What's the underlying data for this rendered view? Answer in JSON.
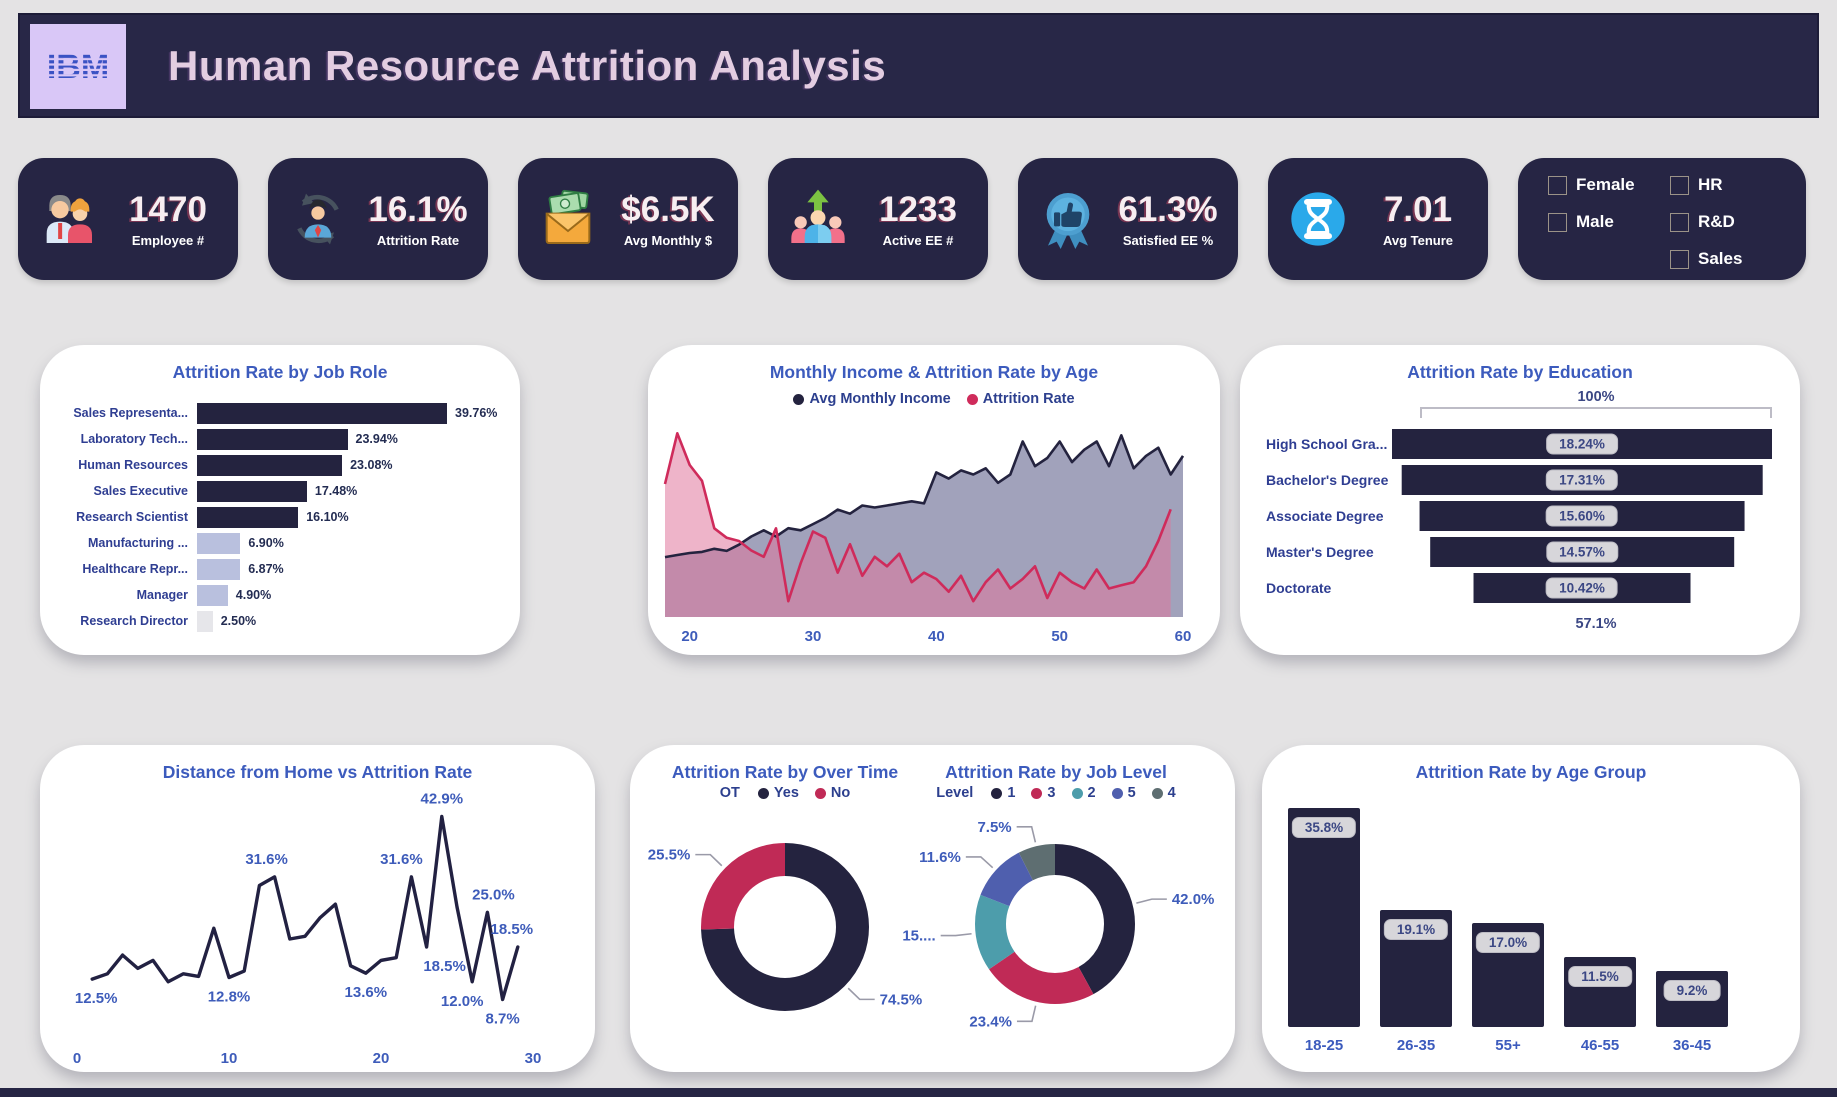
{
  "header": {
    "logo": "IBM",
    "title": "Human Resource Attrition Analysis"
  },
  "kpis": [
    {
      "icon": "employees-icon",
      "value": "1470",
      "label": "Employee #"
    },
    {
      "icon": "attrition-cycle-icon",
      "value": "16.1%",
      "label": "Attrition Rate"
    },
    {
      "icon": "money-envelope-icon",
      "value": "$6.5K",
      "label": "Avg Monthly $"
    },
    {
      "icon": "active-people-icon",
      "value": "1233",
      "label": "Active EE #"
    },
    {
      "icon": "thumbs-up-badge-icon",
      "value": "61.3%",
      "label": "Satisfied EE %"
    },
    {
      "icon": "hourglass-icon",
      "value": "7.01",
      "label": "Avg Tenure"
    }
  ],
  "filters": {
    "gender": [
      {
        "label": "Female",
        "checked": false
      },
      {
        "label": "Male",
        "checked": false
      }
    ],
    "department": [
      {
        "label": "HR",
        "checked": false
      },
      {
        "label": "R&D",
        "checked": false
      },
      {
        "label": "Sales",
        "checked": false
      }
    ]
  },
  "colors": {
    "navy": "#24233f",
    "crimson": "#c02a56",
    "crimsonLine": "#cf2b5b",
    "teal": "#4d9dab",
    "indigo": "#4f5fae",
    "grayGreen": "#5e6e71",
    "lavenderBar": "#b9c0de",
    "lightestBar": "#e6e6ea",
    "incomeFill": "#9798b4",
    "attritionFill": "#e0769c",
    "titleBlue": "#3c5bbd",
    "labelBlue": "#3e5cba",
    "leader": "#9a9aa8"
  },
  "chart_data": [
    {
      "id": "job_role",
      "type": "bar",
      "orientation": "horizontal",
      "title": "Attrition Rate by Job Role",
      "categories": [
        "Sales Representa...",
        "Laboratory Tech...",
        "Human Resources",
        "Sales Executive",
        "Research Scientist",
        "Manufacturing ...",
        "Healthcare Repr...",
        "Manager",
        "Research Director"
      ],
      "values": [
        39.76,
        23.94,
        23.08,
        17.48,
        16.1,
        6.9,
        6.87,
        4.9,
        2.5
      ],
      "labels": [
        "39.76%",
        "23.94%",
        "23.08%",
        "17.48%",
        "16.10%",
        "6.90%",
        "6.87%",
        "4.90%",
        "2.50%"
      ],
      "bar_colors": [
        "#24233f",
        "#24233f",
        "#24233f",
        "#24233f",
        "#24233f",
        "#b9c0de",
        "#b9c0de",
        "#b9c0de",
        "#e6e6ea"
      ]
    },
    {
      "id": "income_age",
      "type": "area",
      "title": "Monthly Income & Attrition Rate by Age",
      "x_range": [
        18,
        60
      ],
      "x_ticks": [
        20,
        30,
        40,
        50,
        60
      ],
      "series": [
        {
          "name": "Avg Monthly Income",
          "color": "#24233f",
          "fill": "#9798b4",
          "x_start": 18,
          "max": 9.2,
          "values": [
            2.9,
            3.0,
            3.1,
            3.15,
            3.3,
            3.2,
            3.5,
            3.9,
            4.2,
            3.9,
            4.3,
            4.2,
            4.5,
            4.8,
            5.2,
            5.0,
            5.4,
            5.3,
            5.4,
            5.5,
            5.6,
            5.5,
            7.0,
            6.7,
            7.1,
            6.9,
            7.2,
            6.5,
            6.9,
            8.5,
            7.3,
            7.7,
            8.5,
            7.5,
            8.1,
            8.5,
            7.3,
            8.8,
            7.2,
            7.8,
            8.2,
            6.9,
            7.8
          ]
        },
        {
          "name": "Attrition Rate",
          "color": "#cf2b5b",
          "fill": "#e0769c",
          "x_start": 18,
          "max": 60,
          "values": [
            42,
            58,
            48,
            43,
            28,
            25,
            24,
            21,
            19,
            28,
            5,
            17,
            27,
            25,
            14,
            23,
            13,
            19,
            16,
            20,
            11,
            14,
            12,
            8,
            13,
            5,
            11,
            15,
            9,
            12,
            16,
            6,
            14,
            11,
            9,
            15,
            9,
            10,
            11,
            16,
            24,
            34
          ]
        }
      ]
    },
    {
      "id": "education",
      "type": "funnel",
      "title": "Attrition Rate by Education",
      "categories": [
        "High School Gra...",
        "Bachelor's Degree",
        "Associate Degree",
        "Master's Degree",
        "Doctorate"
      ],
      "values": [
        18.24,
        17.31,
        15.6,
        14.57,
        10.42
      ],
      "labels": [
        "18.24%",
        "17.31%",
        "15.60%",
        "14.57%",
        "10.42%"
      ],
      "top_label": "100%",
      "bottom_label": "57.1%"
    },
    {
      "id": "distance",
      "type": "line",
      "title": "Distance from Home vs Attrition Rate",
      "x_ticks": [
        0,
        10,
        20,
        30
      ],
      "xlim": [
        0,
        30
      ],
      "ylim": [
        0,
        48
      ],
      "points": [
        {
          "x": 1,
          "y": 12.5
        },
        {
          "x": 2,
          "y": 13.5
        },
        {
          "x": 3,
          "y": 17
        },
        {
          "x": 4,
          "y": 14.5
        },
        {
          "x": 5,
          "y": 16
        },
        {
          "x": 6,
          "y": 12
        },
        {
          "x": 7,
          "y": 13.5
        },
        {
          "x": 8,
          "y": 13
        },
        {
          "x": 9,
          "y": 22
        },
        {
          "x": 10,
          "y": 12.8
        },
        {
          "x": 11,
          "y": 14
        },
        {
          "x": 12,
          "y": 30
        },
        {
          "x": 13,
          "y": 31.6
        },
        {
          "x": 14,
          "y": 20
        },
        {
          "x": 15,
          "y": 20.5
        },
        {
          "x": 16,
          "y": 24
        },
        {
          "x": 17,
          "y": 26.5
        },
        {
          "x": 18,
          "y": 15
        },
        {
          "x": 19,
          "y": 13.6
        },
        {
          "x": 20,
          "y": 16
        },
        {
          "x": 21,
          "y": 16.5
        },
        {
          "x": 22,
          "y": 31.6
        },
        {
          "x": 23,
          "y": 18.5
        },
        {
          "x": 24,
          "y": 42.9
        },
        {
          "x": 25,
          "y": 26
        },
        {
          "x": 26,
          "y": 12.0
        },
        {
          "x": 27,
          "y": 25.0
        },
        {
          "x": 28,
          "y": 8.7
        },
        {
          "x": 29,
          "y": 18.5
        }
      ],
      "point_labels": [
        {
          "x": 1,
          "y": 12.5,
          "text": "12.5%",
          "pos": "below",
          "dx": 4
        },
        {
          "x": 10,
          "y": 12.8,
          "text": "12.8%",
          "pos": "below",
          "dx": 0
        },
        {
          "x": 13,
          "y": 31.6,
          "text": "31.6%",
          "pos": "above",
          "dx": -8
        },
        {
          "x": 19,
          "y": 13.6,
          "text": "13.6%",
          "pos": "below",
          "dx": 0
        },
        {
          "x": 22,
          "y": 31.6,
          "text": "31.6%",
          "pos": "above",
          "dx": -10
        },
        {
          "x": 23,
          "y": 18.5,
          "text": "18.5%",
          "pos": "below",
          "dx": 18
        },
        {
          "x": 24,
          "y": 42.9,
          "text": "42.9%",
          "pos": "above",
          "dx": 0
        },
        {
          "x": 26,
          "y": 12.0,
          "text": "12.0%",
          "pos": "below",
          "dx": -10
        },
        {
          "x": 27,
          "y": 25.0,
          "text": "25.0%",
          "pos": "above",
          "dx": 6
        },
        {
          "x": 28,
          "y": 8.7,
          "text": "8.7%",
          "pos": "below",
          "dx": 0
        },
        {
          "x": 29,
          "y": 18.5,
          "text": "18.5%",
          "pos": "above",
          "dx": -6
        }
      ]
    },
    {
      "id": "overtime",
      "type": "donut",
      "title": "Attrition Rate by Over Time",
      "legend_title": "OT",
      "slices": [
        {
          "name": "Yes",
          "value": 74.5,
          "label": "74.5%",
          "color": "#24233f"
        },
        {
          "name": "No",
          "value": 25.5,
          "label": "25.5%",
          "color": "#c02a56"
        }
      ]
    },
    {
      "id": "job_level",
      "type": "donut",
      "title": "Attrition Rate by Job Level",
      "legend_title": "Level",
      "slices": [
        {
          "name": "1",
          "value": 42.0,
          "label": "42.0%",
          "color": "#24233f"
        },
        {
          "name": "3",
          "value": 23.4,
          "label": "23.4%",
          "color": "#c02a56"
        },
        {
          "name": "2",
          "value": 15.5,
          "label": "15....",
          "color": "#4d9dab"
        },
        {
          "name": "5",
          "value": 11.6,
          "label": "11.6%",
          "color": "#4f5fae"
        },
        {
          "name": "4",
          "value": 7.5,
          "label": "7.5%",
          "color": "#5e6e71"
        }
      ]
    },
    {
      "id": "age_group",
      "type": "bar",
      "orientation": "vertical",
      "title": "Attrition Rate by Age Group",
      "categories": [
        "18-25",
        "26-35",
        "55+",
        "46-55",
        "36-45"
      ],
      "values": [
        35.8,
        19.1,
        17.0,
        11.5,
        9.2
      ],
      "labels": [
        "35.8%",
        "19.1%",
        "17.0%",
        "11.5%",
        "9.2%"
      ]
    }
  ]
}
